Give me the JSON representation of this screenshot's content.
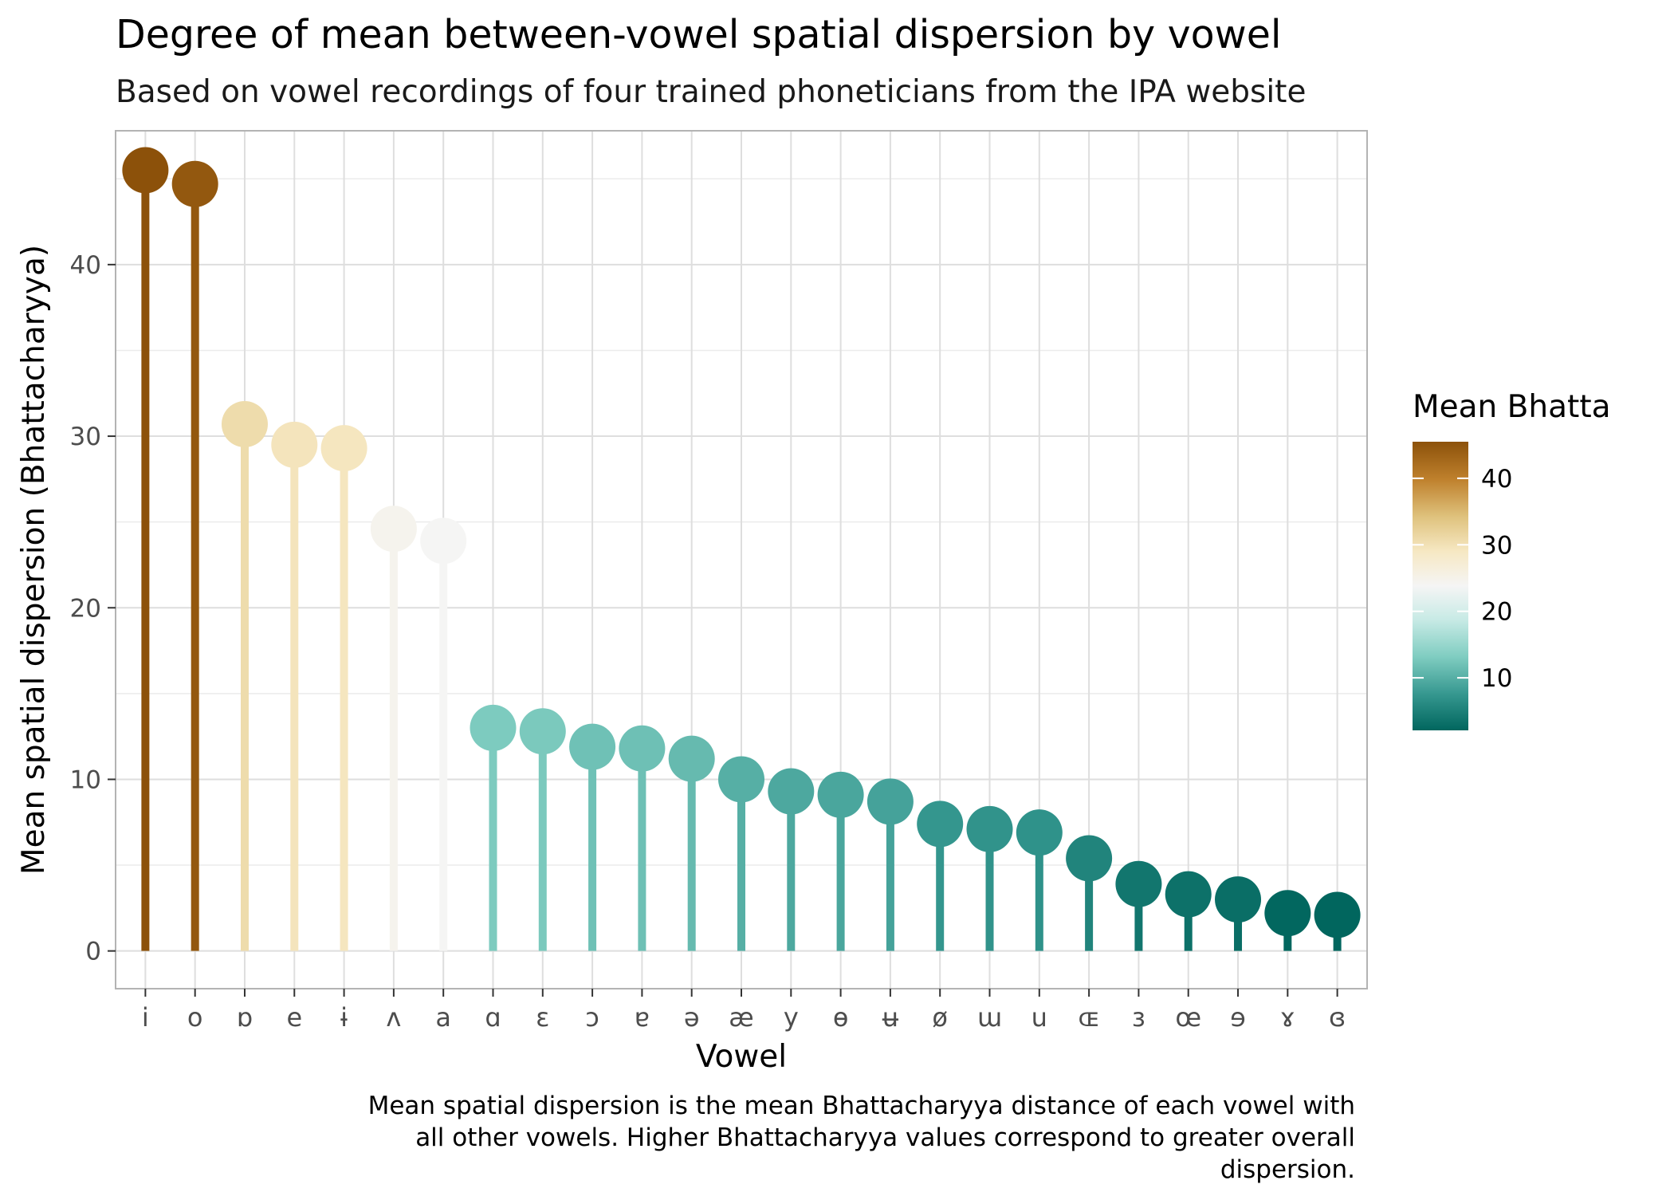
{
  "chart_data": {
    "type": "lollipop",
    "title": "Degree of mean between-vowel spatial dispersion by vowel",
    "subtitle": "Based on vowel recordings of four trained phoneticians from the IPA website",
    "xlabel": "Vowel",
    "ylabel": "Mean spatial dispersion (Bhattacharyya)",
    "caption_lines": [
      "Mean spatial dispersion is the mean Bhattacharyya distance of each vowel with",
      "all other vowels. Higher Bhattacharyya values correspond to greater overall",
      "dispersion."
    ],
    "categories": [
      "i",
      "o",
      "ɒ",
      "e",
      "ɨ",
      "ʌ",
      "a",
      "ɑ",
      "ɛ",
      "ɔ",
      "ɐ",
      "ə",
      "æ",
      "y",
      "ɵ",
      "ʉ",
      "ø",
      "ɯ",
      "u",
      "ɶ",
      "ɜ",
      "œ",
      "ɘ",
      "ɤ",
      "ɞ"
    ],
    "values": [
      45.5,
      44.7,
      30.7,
      29.5,
      29.3,
      24.6,
      23.9,
      13.0,
      12.8,
      11.9,
      11.8,
      11.2,
      10.0,
      9.3,
      9.1,
      8.7,
      7.4,
      7.1,
      6.9,
      5.4,
      3.9,
      3.3,
      3.0,
      2.2,
      2.1
    ],
    "ylim": [
      -2.2,
      47.8
    ],
    "yticks": [
      0,
      10,
      20,
      30,
      40
    ],
    "grid": true,
    "legend": {
      "title": "Mean Bhatta",
      "position": "right",
      "ticks": [
        10,
        20,
        30,
        40
      ],
      "range": [
        2.1,
        45.5
      ]
    },
    "color_scale": {
      "stops": [
        {
          "value": 2.1,
          "color": "#01665e"
        },
        {
          "value": 7.5,
          "color": "#35978f"
        },
        {
          "value": 13.2,
          "color": "#80cdc1"
        },
        {
          "value": 18.7,
          "color": "#c7eae5"
        },
        {
          "value": 23.8,
          "color": "#f5f5f5"
        },
        {
          "value": 29.0,
          "color": "#f6e8c3"
        },
        {
          "value": 34.2,
          "color": "#dfc27d"
        },
        {
          "value": 39.8,
          "color": "#bf812d"
        },
        {
          "value": 45.5,
          "color": "#8c510a"
        }
      ]
    }
  }
}
